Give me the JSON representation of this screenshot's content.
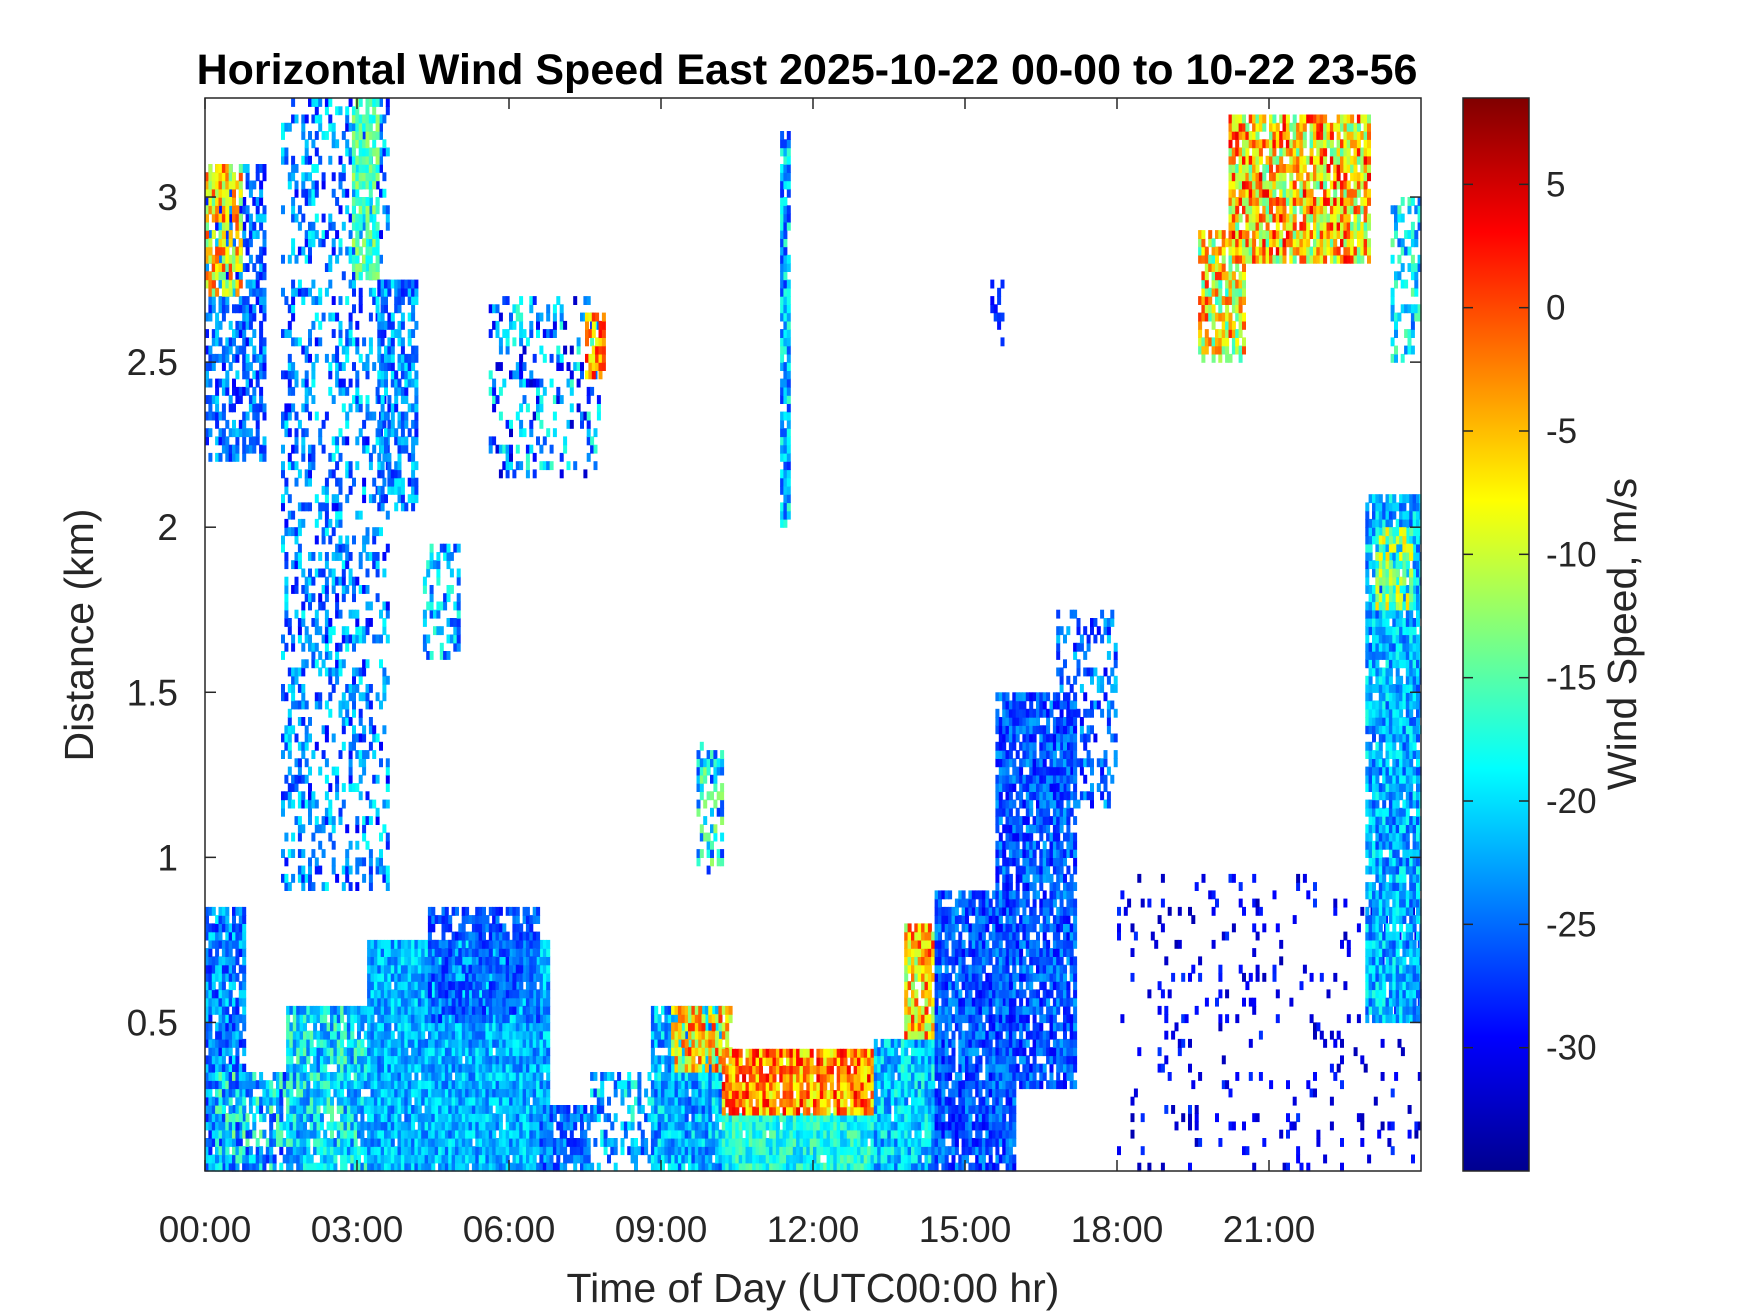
{
  "chart_data": {
    "type": "heatmap",
    "title": "Horizontal Wind Speed East 2025-10-22 00-00 to 10-22 23-56",
    "xlabel": "Time of Day (UTC00:00 hr)",
    "ylabel": "Distance (km)",
    "xlim": [
      0,
      24
    ],
    "ylim": [
      0.05,
      3.3
    ],
    "x_ticks": [
      0,
      3,
      6,
      9,
      12,
      15,
      18,
      21
    ],
    "x_tick_labels": [
      "00:00",
      "03:00",
      "06:00",
      "09:00",
      "12:00",
      "15:00",
      "18:00",
      "21:00"
    ],
    "y_ticks": [
      0.5,
      1,
      1.5,
      2,
      2.5,
      3
    ],
    "y_tick_labels": [
      "0.5",
      "1",
      "1.5",
      "2",
      "2.5",
      "3"
    ],
    "colorbar": {
      "label": "Wind Speed, m/s",
      "range": [
        -35,
        8.5
      ],
      "colormap": "jet",
      "ticks": [
        5,
        0,
        -5,
        -10,
        -15,
        -20,
        -25,
        -30
      ],
      "tick_labels": [
        "5",
        "0",
        "-5",
        "-10",
        "-15",
        "-20",
        "-25",
        "-30"
      ]
    },
    "grid": false,
    "regions": [
      {
        "x": [
          0.0,
          0.8
        ],
        "y": [
          0.05,
          0.85
        ],
        "density": 0.85,
        "v": -24,
        "spread": 5
      },
      {
        "x": [
          0.2,
          1.6
        ],
        "y": [
          0.05,
          0.35
        ],
        "density": 0.7,
        "v": -21,
        "spread": 8
      },
      {
        "x": [
          1.6,
          3.2
        ],
        "y": [
          0.05,
          0.55
        ],
        "density": 0.9,
        "v": -20,
        "spread": 6
      },
      {
        "x": [
          3.2,
          6.8
        ],
        "y": [
          0.05,
          0.75
        ],
        "density": 0.98,
        "v": -22,
        "spread": 4
      },
      {
        "x": [
          4.4,
          6.6
        ],
        "y": [
          0.5,
          0.85
        ],
        "density": 0.7,
        "v": -26,
        "spread": 3
      },
      {
        "x": [
          6.6,
          7.6
        ],
        "y": [
          0.05,
          0.25
        ],
        "density": 0.8,
        "v": -25,
        "spread": 4
      },
      {
        "x": [
          7.6,
          8.8
        ],
        "y": [
          0.05,
          0.35
        ],
        "density": 0.45,
        "v": -22,
        "spread": 6
      },
      {
        "x": [
          8.8,
          10.2
        ],
        "y": [
          0.05,
          0.55
        ],
        "density": 0.95,
        "v": -22,
        "spread": 5
      },
      {
        "x": [
          9.2,
          10.4
        ],
        "y": [
          0.35,
          0.55
        ],
        "density": 0.85,
        "v": -6,
        "spread": 8
      },
      {
        "x": [
          10.2,
          13.2
        ],
        "y": [
          0.05,
          0.22
        ],
        "density": 0.98,
        "v": -18,
        "spread": 4
      },
      {
        "x": [
          10.2,
          13.2
        ],
        "y": [
          0.22,
          0.42
        ],
        "density": 0.9,
        "v": -3,
        "spread": 7
      },
      {
        "x": [
          13.2,
          14.4
        ],
        "y": [
          0.05,
          0.45
        ],
        "density": 0.95,
        "v": -21,
        "spread": 5
      },
      {
        "x": [
          13.8,
          14.4
        ],
        "y": [
          0.45,
          0.8
        ],
        "density": 0.85,
        "v": -6,
        "spread": 8
      },
      {
        "x": [
          14.4,
          16.0
        ],
        "y": [
          0.05,
          0.9
        ],
        "density": 0.85,
        "v": -26,
        "spread": 4
      },
      {
        "x": [
          15.6,
          17.2
        ],
        "y": [
          0.3,
          1.5
        ],
        "density": 0.8,
        "v": -26,
        "spread": 4
      },
      {
        "x": [
          16.8,
          18.0
        ],
        "y": [
          1.15,
          1.75
        ],
        "density": 0.4,
        "v": -25,
        "spread": 5
      },
      {
        "x": [
          18.0,
          24.0
        ],
        "y": [
          0.05,
          0.95
        ],
        "density": 0.1,
        "v": -30,
        "spread": 3
      },
      {
        "x": [
          0.0,
          1.2
        ],
        "y": [
          2.2,
          3.1
        ],
        "density": 0.55,
        "v": -25,
        "spread": 5
      },
      {
        "x": [
          0.0,
          0.7
        ],
        "y": [
          2.7,
          3.1
        ],
        "density": 0.75,
        "v": -7,
        "spread": 8
      },
      {
        "x": [
          1.5,
          3.6
        ],
        "y": [
          0.9,
          3.3
        ],
        "density": 0.35,
        "v": -24,
        "spread": 6
      },
      {
        "x": [
          2.9,
          3.4
        ],
        "y": [
          2.75,
          3.3
        ],
        "density": 0.75,
        "v": -15,
        "spread": 4
      },
      {
        "x": [
          3.4,
          4.2
        ],
        "y": [
          2.05,
          2.75
        ],
        "density": 0.65,
        "v": -24,
        "spread": 5
      },
      {
        "x": [
          4.3,
          5.0
        ],
        "y": [
          1.6,
          1.95
        ],
        "density": 0.4,
        "v": -22,
        "spread": 6
      },
      {
        "x": [
          5.6,
          7.8
        ],
        "y": [
          2.15,
          2.7
        ],
        "density": 0.3,
        "v": -24,
        "spread": 8
      },
      {
        "x": [
          7.5,
          7.9
        ],
        "y": [
          2.45,
          2.65
        ],
        "density": 0.7,
        "v": -3,
        "spread": 6
      },
      {
        "x": [
          9.7,
          10.2
        ],
        "y": [
          0.95,
          1.35
        ],
        "density": 0.5,
        "v": -20,
        "spread": 8
      },
      {
        "x": [
          11.35,
          11.55
        ],
        "y": [
          2.0,
          3.2
        ],
        "density": 0.85,
        "v": -22,
        "spread": 6
      },
      {
        "x": [
          15.5,
          15.75
        ],
        "y": [
          2.55,
          2.75
        ],
        "density": 0.4,
        "v": -28,
        "spread": 2
      },
      {
        "x": [
          19.6,
          20.5
        ],
        "y": [
          2.5,
          2.9
        ],
        "density": 0.75,
        "v": -8,
        "spread": 10
      },
      {
        "x": [
          20.2,
          23.0
        ],
        "y": [
          2.8,
          3.25
        ],
        "density": 0.85,
        "v": -6,
        "spread": 10
      },
      {
        "x": [
          22.9,
          24.0
        ],
        "y": [
          0.5,
          2.1
        ],
        "density": 0.9,
        "v": -22,
        "spread": 5
      },
      {
        "x": [
          23.1,
          23.8
        ],
        "y": [
          1.75,
          2.0
        ],
        "density": 0.7,
        "v": -12,
        "spread": 6
      },
      {
        "x": [
          23.4,
          24.0
        ],
        "y": [
          2.5,
          3.0
        ],
        "density": 0.4,
        "v": -20,
        "spread": 6
      }
    ]
  }
}
